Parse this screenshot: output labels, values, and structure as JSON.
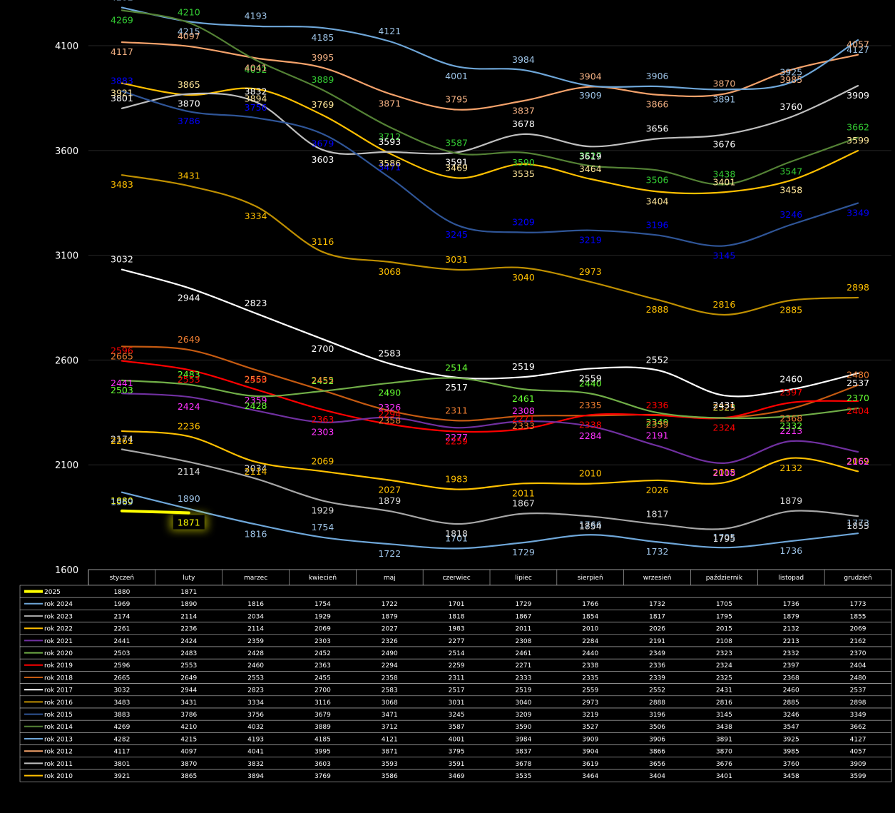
{
  "chart_data": {
    "type": "line",
    "categories": [
      "styczeń",
      "luty",
      "marzec",
      "kwiecień",
      "maj",
      "czerwiec",
      "lipiec",
      "sierpień",
      "wrzesień",
      "październik",
      "listopad",
      "grudzień"
    ],
    "ylim": [
      1600,
      4250
    ],
    "yticks": [
      1600,
      2100,
      2600,
      3100,
      3600,
      4100
    ],
    "grid": true,
    "legend": "data-table-bottom",
    "series": [
      {
        "name": "2025",
        "color": "#ffff00",
        "values": [
          1880,
          1871,
          null,
          null,
          null,
          null,
          null,
          null,
          null,
          null,
          null,
          null
        ],
        "labels": [
          "1880",
          "1871",
          "",
          "",
          "",
          "",
          "",
          "",
          "",
          "",
          "",
          ""
        ]
      },
      {
        "name": "rok 2024",
        "color": "#6ea6d8",
        "values": [
          1969,
          1890,
          1816,
          1754,
          1722,
          1701,
          1729,
          1766,
          1732,
          1705,
          1736,
          1773
        ],
        "labels": [
          "1969",
          "1890",
          "1816",
          "1754",
          "1722",
          "1701",
          "1729",
          "1766",
          "1732",
          "1705",
          "1736",
          "1773"
        ]
      },
      {
        "name": "rok 2023",
        "color": "#a6a6a6",
        "values": [
          2174,
          2114,
          2034,
          1929,
          1879,
          1818,
          1867,
          1854,
          1817,
          1795,
          1879,
          1855
        ],
        "labels": [
          "2174",
          "2114",
          "2034",
          "1929",
          "1879",
          "1818",
          "1867",
          "1854",
          "1817",
          "1795",
          "1879",
          "1855"
        ]
      },
      {
        "name": "rok 2022",
        "color": "#ffc000",
        "values": [
          2261,
          2236,
          2114,
          2069,
          2027,
          1983,
          2011,
          2010,
          2026,
          2015,
          2132,
          2069
        ],
        "labels": [
          "2261",
          "2236",
          "2114",
          "2069",
          "2027",
          "1983",
          "2011",
          "2010",
          "2026",
          "2015",
          "2132",
          "2069"
        ]
      },
      {
        "name": "rok 2021",
        "color": "#7030a0",
        "values": [
          2441,
          2424,
          2359,
          2303,
          2326,
          2277,
          2308,
          2284,
          2191,
          2108,
          2213,
          2162
        ],
        "labels": [
          "2441",
          "2424",
          "2359",
          "2303",
          "2326",
          "2277",
          "2308",
          "2284",
          "2191",
          "2108",
          "2213",
          "2162"
        ]
      },
      {
        "name": "rok 2020",
        "color": "#70ad47",
        "values": [
          2503,
          2483,
          2428,
          2452,
          2490,
          2514,
          2461,
          2440,
          2349,
          2323,
          2332,
          2370
        ],
        "labels": [
          "2503",
          "2483",
          "2428",
          "2452",
          "2490",
          "2514",
          "2461",
          "2440",
          "2349",
          "2323",
          "2332",
          "2370"
        ]
      },
      {
        "name": "rok 2019",
        "color": "#ff0000",
        "values": [
          2596,
          2553,
          2460,
          2363,
          2294,
          2259,
          2271,
          2338,
          2336,
          2324,
          2397,
          2404
        ],
        "labels": [
          "2596",
          "2553",
          "2460",
          "2363",
          "2294",
          "2259",
          "2271",
          "2338",
          "2336",
          "2324",
          "2397",
          "2404"
        ]
      },
      {
        "name": "rok 2018",
        "color": "#c55a11",
        "values": [
          2665,
          2649,
          2553,
          2455,
          2358,
          2311,
          2333,
          2335,
          2339,
          2325,
          2368,
          2480
        ],
        "labels": [
          "2665",
          "2649",
          "2553",
          "2455",
          "2358",
          "2311",
          "2333",
          "2335",
          "2339",
          "2325",
          "2368",
          "2480"
        ]
      },
      {
        "name": "rok 2017",
        "color": "#ffffff",
        "values": [
          3032,
          2944,
          2823,
          2700,
          2583,
          2517,
          2519,
          2559,
          2552,
          2431,
          2460,
          2537
        ],
        "labels": [
          "3032",
          "2944",
          "2823",
          "2700",
          "2583",
          "2517",
          "2519",
          "2559",
          "2552",
          "2431",
          "2460",
          "2537"
        ]
      },
      {
        "name": "rok 2016",
        "color": "#bf8f00",
        "values": [
          3483,
          3431,
          3334,
          3116,
          3068,
          3031,
          3040,
          2973,
          2888,
          2816,
          2885,
          2898
        ],
        "labels": [
          "3483",
          "3431",
          "3334",
          "3116",
          "3068",
          "3031",
          "3040",
          "2973",
          "2888",
          "2816",
          "2885",
          "2898"
        ]
      },
      {
        "name": "rok 2015",
        "color": "#2f5597",
        "values": [
          3883,
          3786,
          3756,
          3679,
          3471,
          3245,
          3209,
          3219,
          3196,
          3145,
          3246,
          3349
        ],
        "labels": [
          "3883",
          "3786",
          "3756",
          "3679",
          "3471",
          "3245",
          "3209",
          "3219",
          "3196",
          "3145",
          "3246",
          "3349"
        ]
      },
      {
        "name": "rok 2014",
        "color": "#548235",
        "values": [
          4269,
          4210,
          4032,
          3889,
          3712,
          3587,
          3590,
          3527,
          3506,
          3438,
          3547,
          3662
        ],
        "labels": [
          "4269",
          "4210",
          "4032",
          "3889",
          "3712",
          "3587",
          "3590",
          "3527",
          "3506",
          "3438",
          "3547",
          "3662"
        ]
      },
      {
        "name": "rok 2013",
        "color": "#6ea6d8",
        "values": [
          4282,
          4215,
          4193,
          4185,
          4121,
          4001,
          3984,
          3909,
          3906,
          3891,
          3925,
          4127
        ],
        "labels": [
          "4282",
          "4215",
          "4193",
          "4185",
          "4121",
          "4001",
          "3984",
          "3909",
          "3906",
          "3891",
          "3925",
          "4127"
        ]
      },
      {
        "name": "rok 2012",
        "color": "#f4a26b",
        "values": [
          4117,
          4097,
          4041,
          3995,
          3871,
          3795,
          3837,
          3904,
          3866,
          3870,
          3985,
          4057
        ],
        "labels": [
          "4117",
          "4097",
          "4041",
          "3995",
          "3871",
          "3795",
          "3837",
          "3904",
          "3866",
          "3870",
          "3985",
          "4057"
        ]
      },
      {
        "name": "rok 2011",
        "color": "#bfbfbf",
        "values": [
          3801,
          3870,
          3832,
          3603,
          3593,
          3591,
          3678,
          3619,
          3656,
          3676,
          3760,
          3909
        ],
        "labels": [
          "3801",
          "3870",
          "3832",
          "3603",
          "3593",
          "3591",
          "3678",
          "3619",
          "3656",
          "3676",
          "3760",
          "3909"
        ]
      },
      {
        "name": "rok 2010",
        "color": "#ffc000",
        "values": [
          3921,
          3865,
          3894,
          3769,
          3586,
          3469,
          3535,
          3464,
          3404,
          3401,
          3458,
          3599
        ],
        "labels": [
          "3921",
          "3865",
          "3894",
          "3769",
          "3586",
          "3469",
          "3535",
          "3464",
          "3404",
          "3401",
          "3458",
          "3599"
        ]
      }
    ],
    "label_colors": {
      "2025": "#ffff00",
      "rok 2024": "#9dc3e6",
      "rok 2023": "#d9d9d9",
      "rok 2022": "#ffc000",
      "rok 2021": "#ff33ff",
      "rok 2020": "#66ff33",
      "rok 2019": "#ff0000",
      "rok 2018": "#ed7d31",
      "rok 2017": "#ffffff",
      "rok 2016": "#ffc000",
      "rok 2015": "#0000ff",
      "rok 2014": "#33cc33",
      "rok 2013": "#9dc3e6",
      "rok 2012": "#f4b183",
      "rok 2011": "#ffffff",
      "rok 2010": "#ffe699"
    }
  }
}
